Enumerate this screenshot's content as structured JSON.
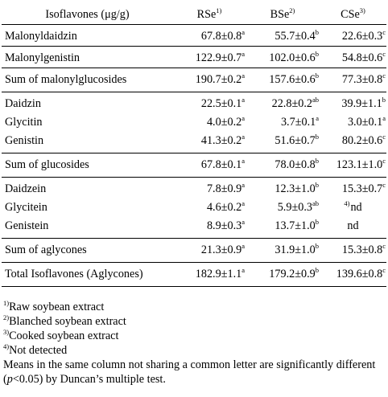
{
  "table": {
    "header": {
      "label": "Isoflavones (μg/g)",
      "columns": [
        {
          "name": "RSe",
          "note": "1)"
        },
        {
          "name": "BSe",
          "note": "2)"
        },
        {
          "name": "CSe",
          "note": "3)"
        }
      ]
    },
    "rows": [
      {
        "label": "Malonyldaidzin",
        "cells": [
          {
            "v": "67.8±0.8",
            "s": "a"
          },
          {
            "v": "55.7±0.4",
            "s": "b"
          },
          {
            "v": "22.6±0.3",
            "s": "c"
          }
        ]
      },
      {
        "label": "Malonylgenistin",
        "cells": [
          {
            "v": "122.9±0.7",
            "s": "a"
          },
          {
            "v": "102.0±0.6",
            "s": "b"
          },
          {
            "v": "54.8±0.6",
            "s": "c"
          }
        ]
      },
      {
        "label": "Sum of malonylglucosides",
        "cells": [
          {
            "v": "190.7±0.2",
            "s": "a"
          },
          {
            "v": "157.6±0.6",
            "s": "b"
          },
          {
            "v": "77.3±0.8",
            "s": "c"
          }
        ]
      },
      {
        "label": "Daidzin",
        "cells": [
          {
            "v": "22.5±0.1",
            "s": "a"
          },
          {
            "v": "22.8±0.2",
            "s": "ab"
          },
          {
            "v": "39.9±1.1",
            "s": "b"
          }
        ]
      },
      {
        "label": "Glycitin",
        "cells": [
          {
            "v": "4.0±0.2",
            "s": "a"
          },
          {
            "v": "3.7±0.1",
            "s": "a"
          },
          {
            "v": "3.0±0.1",
            "s": "a"
          }
        ]
      },
      {
        "label": "Genistin",
        "cells": [
          {
            "v": "41.3±0.2",
            "s": "a"
          },
          {
            "v": "51.6±0.7",
            "s": "b"
          },
          {
            "v": "80.2±0.6",
            "s": "c"
          }
        ]
      },
      {
        "label": "Sum of glucosides",
        "cells": [
          {
            "v": "67.8±0.1",
            "s": "a"
          },
          {
            "v": "78.0±0.8",
            "s": "b"
          },
          {
            "v": "123.1±1.0",
            "s": "c"
          }
        ]
      },
      {
        "label": "Daidzein",
        "cells": [
          {
            "v": "7.8±0.9",
            "s": "a"
          },
          {
            "v": "12.3±1.0",
            "s": "b"
          },
          {
            "v": "15.3±0.7",
            "s": "c"
          }
        ]
      },
      {
        "label": "Glycitein",
        "cells": [
          {
            "v": "4.6±0.2",
            "s": "a"
          },
          {
            "v": "5.9±0.3",
            "s": "ab"
          },
          {
            "v": "nd",
            "pre": "4)"
          }
        ]
      },
      {
        "label": "Genistein",
        "cells": [
          {
            "v": "8.9±0.3",
            "s": "a"
          },
          {
            "v": "13.7±1.0",
            "s": "b"
          },
          {
            "v": "nd"
          }
        ]
      },
      {
        "label": "Sum of aglycones",
        "cells": [
          {
            "v": "21.3±0.9",
            "s": "a"
          },
          {
            "v": "31.9±1.0",
            "s": "b"
          },
          {
            "v": "15.3±0.8",
            "s": "c"
          }
        ]
      },
      {
        "label": "Total Isoflavones (Aglycones)",
        "cells": [
          {
            "v": "182.9±1.1",
            "s": "a"
          },
          {
            "v": "179.2±0.9",
            "s": "b"
          },
          {
            "v": "139.6±0.8",
            "s": "c"
          }
        ]
      }
    ]
  },
  "footnotes": [
    {
      "mark": "1)",
      "text": "Raw soybean extract"
    },
    {
      "mark": "2)",
      "text": "Blanched soybean extract"
    },
    {
      "mark": "3)",
      "text": "Cooked soybean extract"
    },
    {
      "mark": "4)",
      "text": "Not detected"
    }
  ],
  "means_note": {
    "before": "Means in the same column not sharing a common letter are significantly different (",
    "p": "p",
    "after": "<0.05) by Duncan’s multiple test."
  }
}
